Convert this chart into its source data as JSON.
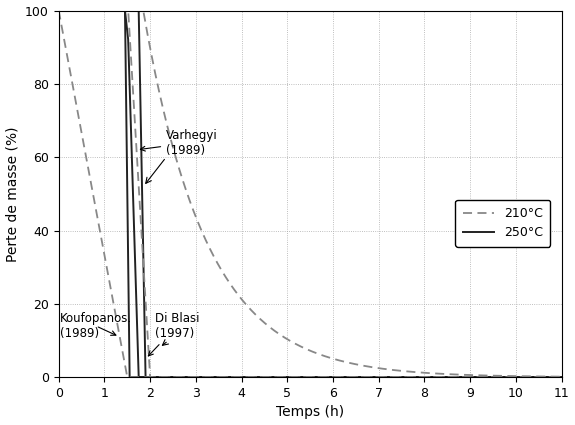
{
  "title": "",
  "xlabel": "Temps (h)",
  "ylabel": "Perte de masse (%)",
  "xlim": [
    0,
    11
  ],
  "ylim": [
    0,
    100
  ],
  "xticks": [
    0,
    1,
    2,
    3,
    4,
    5,
    6,
    7,
    8,
    9,
    10,
    11
  ],
  "yticks": [
    0,
    20,
    40,
    60,
    80,
    100
  ],
  "grid_color": "#aaaaaa",
  "line_color_210": "#888888",
  "line_color_250": "#222222",
  "legend_210": "210°C",
  "legend_250": "250°C",
  "kouf_210_start": 0.0,
  "kouf_210_end": 1.5,
  "kouf_250_drop": 1.5,
  "varh_210_flat_end": 1.52,
  "varh_210_drop_end": 2.0,
  "varh_250_plateau_start": 1.45,
  "varh_250_plateau_end": 1.52,
  "varh_250_plateau_y": 92,
  "varh_250_drop_end": 1.75,
  "dibl_250_drop_start": 1.75,
  "dibl_250_drop_end": 1.9,
  "dibl_210_flat_end": 1.85,
  "dibl_210_decay_rate": 0.72
}
